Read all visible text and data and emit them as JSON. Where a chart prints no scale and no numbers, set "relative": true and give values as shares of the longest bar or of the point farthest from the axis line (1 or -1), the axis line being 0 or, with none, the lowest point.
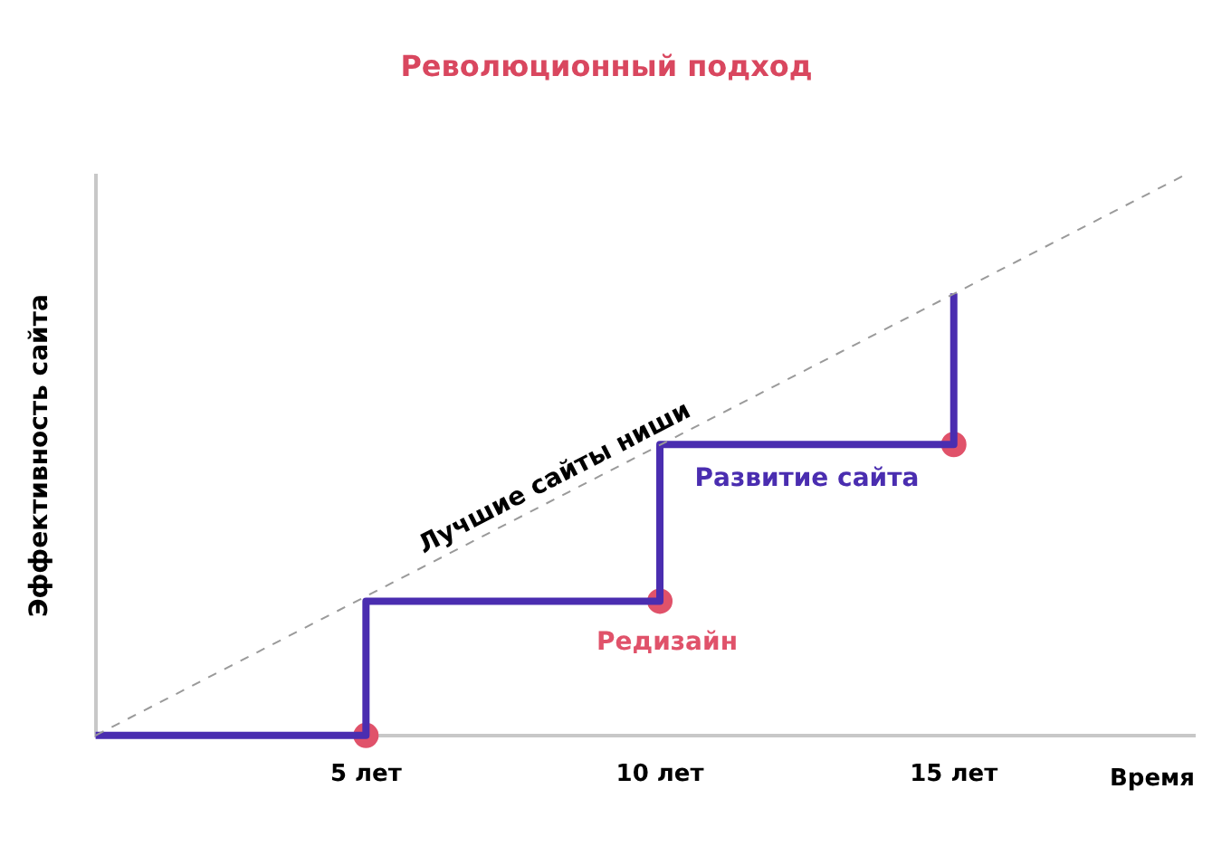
{
  "chart_data": {
    "type": "step",
    "title": "Революционный подход",
    "xlabel": "Время",
    "ylabel": "Эффективность сайта",
    "relative": true,
    "xlim": [
      0.4,
      19.1
    ],
    "xticks": [
      {
        "value": 5,
        "label": "5 лет"
      },
      {
        "value": 10,
        "label": "10 лет"
      },
      {
        "value": 15,
        "label": "15 лет"
      }
    ],
    "grid": false,
    "legend": false,
    "series": [
      {
        "name": "Лучшие сайты ниши",
        "type": "line",
        "line_style": "dashed",
        "color": "#9a9a9a",
        "x": [
          0.4,
          18.9
        ],
        "values": [
          0,
          1
        ]
      },
      {
        "name": "Развитие сайта",
        "color": "#4a2db0",
        "x": [
          0.4,
          5,
          10,
          15
        ],
        "values": [
          0,
          0.24,
          0.52,
          0.79
        ]
      },
      {
        "name": "Редизайн",
        "type": "scatter",
        "marker": "circle",
        "color": "#e0526a",
        "x": [
          5,
          10,
          15
        ],
        "values": [
          0,
          0.24,
          0.52
        ]
      }
    ]
  }
}
